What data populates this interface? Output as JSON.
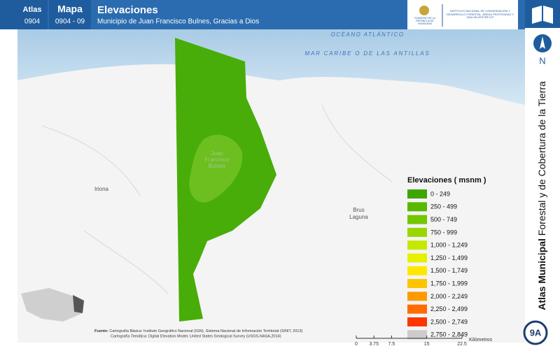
{
  "header": {
    "atlas_label": "Atlas",
    "atlas_code": "0904",
    "map_label": "Mapa",
    "map_code": "0904 - 09",
    "title": "Elevaciones",
    "subtitle": "Municipio de Juan Francisco Bulnes, Gracias a Dios"
  },
  "logos": {
    "government": "GOBIERNO DE LA REPÚBLICA DE HONDURAS",
    "institute": "INSTITUTO NACIONAL DE CONSERVACIÓN Y DESARROLLO FORESTAL, ÁREAS PROTEGIDAS Y VIDA SILVESTRE",
    "institute_short": "ICF"
  },
  "map_labels": {
    "ocean": "OCÉANO ATLÁNTICO",
    "sea": "MAR CARIBE O DE LAS ANTILLAS",
    "municipality": "Juan Francisco Bulnes",
    "town_west": "Iriona",
    "town_east": "Brus Laguna"
  },
  "legend": {
    "title": "Elevaciones ( msnm )",
    "items": [
      {
        "label": "0 - 249",
        "color": "#3ea600"
      },
      {
        "label": "250 - 499",
        "color": "#58b800"
      },
      {
        "label": "500 - 749",
        "color": "#74c600"
      },
      {
        "label": "750 - 999",
        "color": "#9ad600"
      },
      {
        "label": "1,000 - 1,249",
        "color": "#c6e800"
      },
      {
        "label": "1,250 - 1,499",
        "color": "#e6f000"
      },
      {
        "label": "1,500 - 1,749",
        "color": "#ffe800"
      },
      {
        "label": "1,750 - 1,999",
        "color": "#ffc400"
      },
      {
        "label": "2,000 - 2,249",
        "color": "#ff9a00"
      },
      {
        "label": "2,250 - 2,499",
        "color": "#ff6c00"
      },
      {
        "label": "2,500 - 2,749",
        "color": "#ff3600"
      },
      {
        "label": "2,750 - 2,849",
        "color": "#cccccc"
      }
    ]
  },
  "scale_bar": {
    "ticks": [
      0,
      3.75,
      7.5,
      15,
      22.5
    ],
    "unit": "Kilómetros"
  },
  "source": {
    "label": "Fuente:",
    "line1": "Cartografía Básica: Instituto Geográfico Nacional (IGN), Sistema Nacional de Información Territorial (SINIT, 2013)",
    "line2": "Cartografía Temática: Digital Elevation Model, United States Geological Survey (USGS-NASA,2014)"
  },
  "sidebar": {
    "north": "N",
    "title_bold": "Atlas Municipal",
    "title_rest": "Forestal y de Cobertura de la Tierra",
    "page": "9A"
  }
}
